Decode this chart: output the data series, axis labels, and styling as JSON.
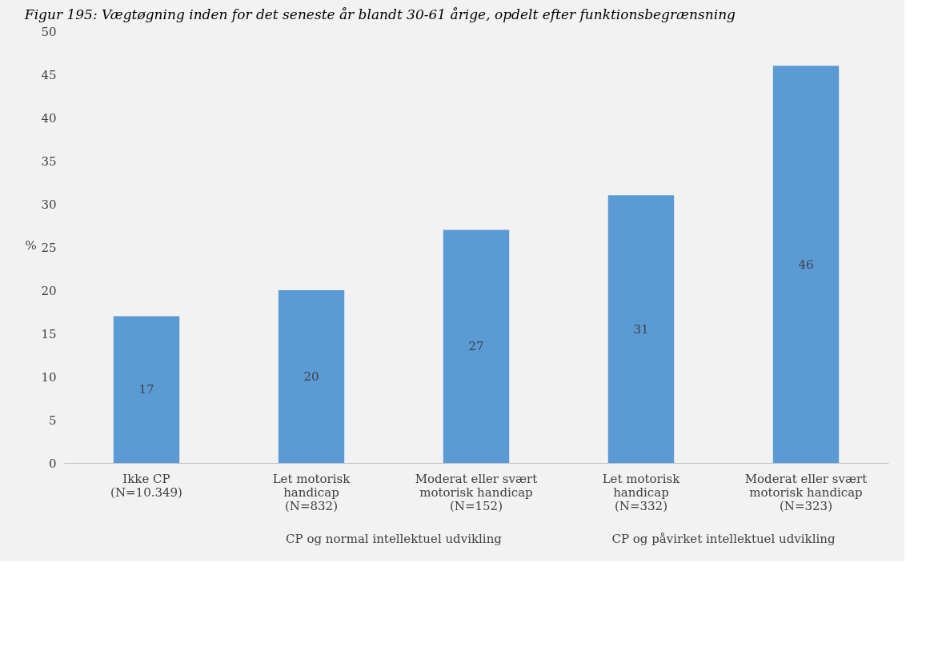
{
  "chart_data": {
    "type": "bar",
    "title": "Figur 195: Vægtøgning inden for det seneste år blandt 30-61 årige, opdelt efter funktionsbegrænsning",
    "ylabel": "%",
    "categories": [
      "Ikke CP\n\n(N=10.349)",
      "Let motorisk\nhandicap\n(N=832)",
      "Moderat eller svært\nmotorisk handicap\n(N=152)",
      "Let motorisk\nhandicap\n(N=332)",
      "Moderat eller svært\nmotorisk handicap\n(N=323)"
    ],
    "values": [
      17,
      20,
      27,
      31,
      46
    ],
    "color": "#5b9bd5",
    "data_labels": true,
    "ylim": [
      0,
      50
    ],
    "yticks": [
      0,
      5,
      10,
      15,
      20,
      25,
      30,
      35,
      40,
      45,
      50
    ],
    "grid": false,
    "annotations": [
      "CP og normal intellektuel udvikling",
      "CP og påvirket intellektuel udvikling"
    ]
  }
}
